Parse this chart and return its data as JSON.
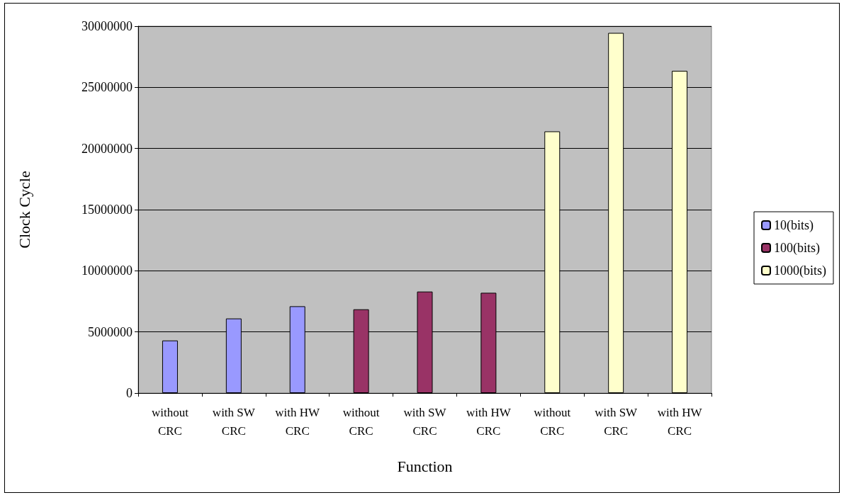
{
  "chart_data": {
    "type": "bar",
    "xlabel": "Function",
    "ylabel": "Clock Cycle",
    "categories": [
      "without CRC",
      "with SW CRC",
      "with HW CRC",
      "without CRC",
      "with SW CRC",
      "with HW CRC",
      "without CRC",
      "with SW CRC",
      "with HW CRC"
    ],
    "series": [
      {
        "name": "10(bits)",
        "color": "#9999ff",
        "values": [
          4300000,
          6100000,
          7100000,
          null,
          null,
          null,
          null,
          null,
          null
        ]
      },
      {
        "name": "100(bits)",
        "color": "#993366",
        "values": [
          null,
          null,
          null,
          6850000,
          8300000,
          8200000,
          null,
          null,
          null
        ]
      },
      {
        "name": "1000(bits)",
        "color": "#ffffcc",
        "values": [
          null,
          null,
          null,
          null,
          null,
          null,
          21400000,
          29450000,
          26350000
        ]
      }
    ],
    "ylim": [
      0,
      30000000
    ],
    "yticks": [
      0,
      5000000,
      10000000,
      15000000,
      20000000,
      25000000,
      30000000
    ],
    "grid": "y",
    "legend": "right"
  }
}
